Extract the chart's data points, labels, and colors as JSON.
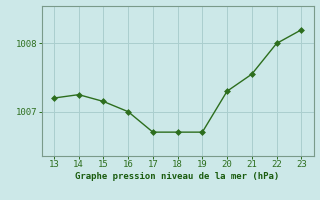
{
  "x": [
    13,
    14,
    15,
    16,
    17,
    18,
    19,
    20,
    21,
    22,
    23
  ],
  "y": [
    1007.2,
    1007.25,
    1007.15,
    1007.0,
    1006.7,
    1006.7,
    1006.7,
    1007.3,
    1007.55,
    1008.0,
    1008.2
  ],
  "line_color": "#2d6e1e",
  "marker_color": "#2d6e1e",
  "bg_color": "#cce8e8",
  "grid_color": "#aacece",
  "xlabel": "Graphe pression niveau de la mer (hPa)",
  "xlabel_color": "#1a5c0f",
  "tick_color": "#2d6e1e",
  "axis_color": "#7a9a8a",
  "ylim": [
    1006.35,
    1008.55
  ],
  "xlim": [
    12.5,
    23.5
  ],
  "yticks": [
    1007,
    1008
  ],
  "xticks": [
    13,
    14,
    15,
    16,
    17,
    18,
    19,
    20,
    21,
    22,
    23
  ]
}
